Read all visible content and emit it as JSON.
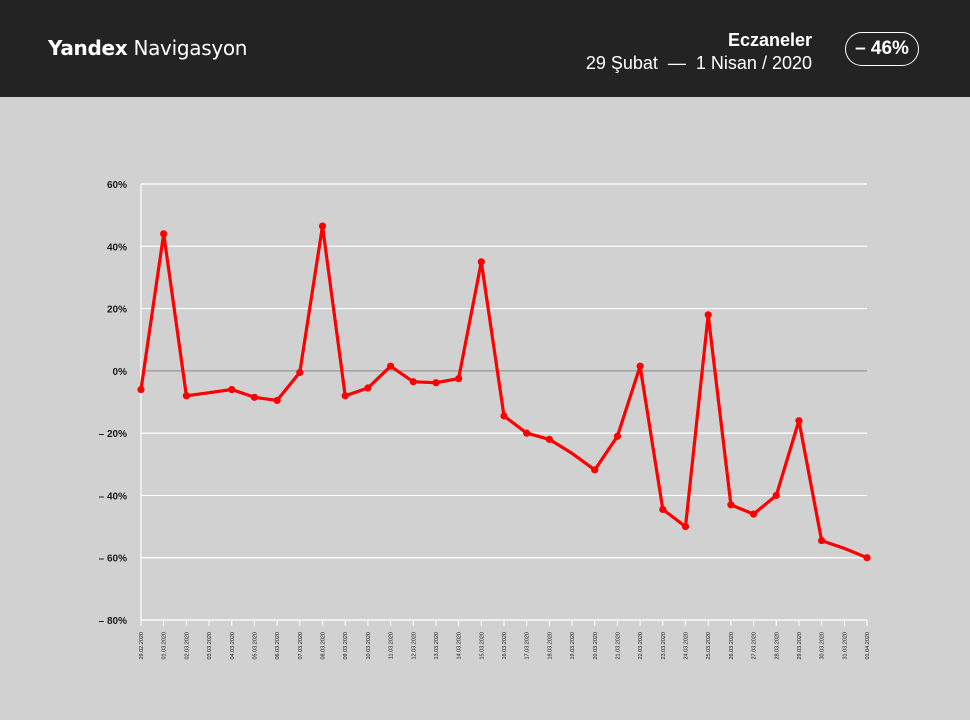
{
  "header": {
    "logo_brand": "Yandex",
    "logo_product": "Navigasyon",
    "category": "Eczaneler",
    "date_range": "29 Şubat  —  1 Nisan / 2020",
    "change_badge": "– 46%"
  },
  "colors": {
    "header_bg": "#232323",
    "plot_bg": "#d1d1d1",
    "line": "#ff0000",
    "grid": "#ffffff"
  },
  "chart_data": {
    "type": "line",
    "title": "",
    "xlabel": "",
    "ylabel": "",
    "ylim": [
      -80,
      60
    ],
    "yticks": [
      60,
      40,
      20,
      0,
      -20,
      -40,
      -60,
      -80
    ],
    "ytick_labels": [
      "60%",
      "40%",
      "20%",
      "0%",
      "– 20%",
      "– 40%",
      "– 60%",
      "– 80%"
    ],
    "grid": true,
    "legend": "none",
    "categories": [
      "29.02.2020",
      "01.03.2020",
      "02.03.2020",
      "03.03.2020",
      "04.03.2020",
      "05.03.2020",
      "06.03.2020",
      "07.03.2020",
      "08.03.2020",
      "09.03.2020",
      "10.03.2020",
      "11.03.2020",
      "12.03.2020",
      "13.03.2020",
      "14.03.2020",
      "15.03.2020",
      "16.03.2020",
      "17.03.2020",
      "18.03.2020",
      "19.03.2020",
      "20.03.2020",
      "21.03.2020",
      "22.03.2020",
      "23.03.2020",
      "24.03.2020",
      "25.03.2020",
      "26.03.2020",
      "27.03.2020",
      "28.03.2020",
      "29.03.2020",
      "30.03.2020",
      "31.03.2020",
      "01.04.2020"
    ],
    "values": [
      -6,
      44,
      -8,
      -7,
      -6,
      -8.5,
      -9.5,
      -0.5,
      46.5,
      -8,
      -5.5,
      1.5,
      -3.5,
      -3.8,
      -2.5,
      35,
      -14.5,
      -20,
      -22,
      -26.5,
      -31.8,
      -21,
      1.5,
      -44.5,
      -50,
      18,
      -43,
      -46,
      -40,
      -16,
      -54.5,
      -57,
      -60
    ],
    "markers": [
      true,
      true,
      true,
      false,
      true,
      true,
      true,
      true,
      true,
      true,
      true,
      true,
      true,
      true,
      true,
      true,
      true,
      true,
      true,
      false,
      true,
      true,
      true,
      true,
      true,
      true,
      true,
      true,
      true,
      true,
      true,
      false,
      true
    ]
  }
}
